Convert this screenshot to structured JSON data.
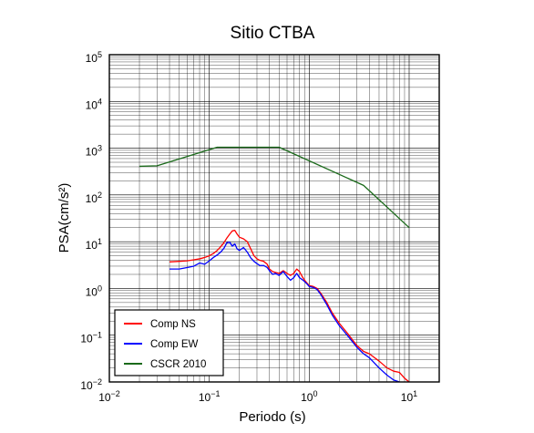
{
  "chart_data": {
    "type": "line",
    "title": "Sitio CTBA",
    "xlabel": "Periodo (s)",
    "ylabel": "PSA(cm/s²)",
    "xscale": "log",
    "yscale": "log",
    "xlim": [
      0.01,
      20
    ],
    "ylim": [
      0.01,
      100000
    ],
    "grid": true,
    "legend_position": "bottom-left",
    "x_tick_labels": [
      {
        "value": 0.01,
        "base": "10",
        "exp": "−2"
      },
      {
        "value": 0.1,
        "base": "10",
        "exp": "−1"
      },
      {
        "value": 1,
        "base": "10",
        "exp": "0"
      },
      {
        "value": 10,
        "base": "10",
        "exp": "1"
      }
    ],
    "y_tick_labels": [
      {
        "value": 0.01,
        "base": "10",
        "exp": "−2"
      },
      {
        "value": 0.1,
        "base": "10",
        "exp": "−1"
      },
      {
        "value": 1,
        "base": "10",
        "exp": "0"
      },
      {
        "value": 10,
        "base": "10",
        "exp": "1"
      },
      {
        "value": 100,
        "base": "10",
        "exp": "2"
      },
      {
        "value": 1000,
        "base": "10",
        "exp": "3"
      },
      {
        "value": 10000,
        "base": "10",
        "exp": "4"
      },
      {
        "value": 100000,
        "base": "10",
        "exp": "5"
      }
    ],
    "series": [
      {
        "name": "Comp NS",
        "color": "#ff0000",
        "x": [
          0.04,
          0.05,
          0.06,
          0.07,
          0.08,
          0.09,
          0.1,
          0.11,
          0.12,
          0.13,
          0.14,
          0.15,
          0.16,
          0.17,
          0.18,
          0.19,
          0.2,
          0.22,
          0.24,
          0.26,
          0.28,
          0.3,
          0.32,
          0.35,
          0.38,
          0.4,
          0.43,
          0.46,
          0.5,
          0.55,
          0.6,
          0.65,
          0.7,
          0.75,
          0.8,
          0.85,
          0.9,
          0.95,
          1.0,
          1.1,
          1.2,
          1.3,
          1.5,
          1.7,
          2.0,
          2.5,
          3.0,
          3.5,
          4.0,
          5.0,
          6.0,
          7.0,
          8.0,
          9.0,
          10.0
        ],
        "y": [
          3.7,
          3.8,
          3.9,
          4.1,
          4.3,
          4.6,
          5.0,
          5.6,
          6.5,
          7.8,
          9.5,
          12.0,
          14.5,
          17.0,
          17.5,
          14.5,
          12.5,
          11.5,
          10.0,
          7.0,
          5.0,
          4.3,
          4.0,
          3.8,
          3.3,
          2.6,
          2.3,
          2.2,
          2.1,
          2.4,
          2.1,
          1.9,
          2.1,
          2.6,
          2.3,
          1.8,
          1.5,
          1.3,
          1.15,
          1.1,
          1.0,
          0.8,
          0.5,
          0.3,
          0.18,
          0.1,
          0.06,
          0.045,
          0.04,
          0.028,
          0.02,
          0.017,
          0.016,
          0.012,
          0.01
        ]
      },
      {
        "name": "Comp EW",
        "color": "#0000ff",
        "x": [
          0.04,
          0.05,
          0.06,
          0.07,
          0.08,
          0.09,
          0.1,
          0.11,
          0.12,
          0.13,
          0.14,
          0.15,
          0.16,
          0.17,
          0.18,
          0.19,
          0.2,
          0.22,
          0.24,
          0.26,
          0.28,
          0.3,
          0.32,
          0.35,
          0.38,
          0.4,
          0.43,
          0.46,
          0.5,
          0.55,
          0.6,
          0.65,
          0.7,
          0.75,
          0.8,
          0.85,
          0.9,
          0.95,
          1.0,
          1.1,
          1.2,
          1.3,
          1.5,
          1.7,
          2.0,
          2.5,
          3.0,
          3.5,
          4.0,
          5.0,
          6.0,
          7.0,
          8.0
        ],
        "y": [
          2.6,
          2.6,
          2.8,
          3.0,
          3.5,
          3.3,
          3.9,
          4.6,
          5.2,
          6.0,
          7.2,
          9.5,
          9.8,
          8.0,
          9.0,
          7.0,
          6.5,
          7.5,
          6.0,
          4.5,
          3.8,
          3.4,
          3.1,
          3.1,
          2.8,
          2.4,
          2.0,
          2.1,
          1.9,
          2.3,
          1.8,
          1.5,
          1.7,
          2.1,
          1.7,
          1.55,
          1.4,
          1.25,
          1.1,
          1.05,
          0.95,
          0.75,
          0.45,
          0.27,
          0.16,
          0.09,
          0.055,
          0.04,
          0.033,
          0.02,
          0.014,
          0.011,
          0.01
        ]
      },
      {
        "name": "CSCR 2010",
        "color": "#1a6a1a",
        "x": [
          0.02,
          0.03,
          0.12,
          0.5,
          3.5,
          10.0
        ],
        "y": [
          410,
          420,
          1050,
          1050,
          160,
          20
        ]
      }
    ]
  }
}
